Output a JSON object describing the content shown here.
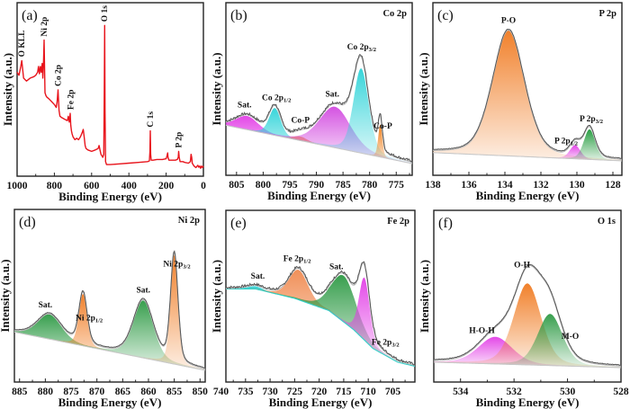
{
  "figure": {
    "xlabel": "Binding Energy (eV)",
    "ylabel": "Intensity (a.u.)"
  },
  "chart_data": [
    {
      "id": "a",
      "type": "line",
      "panel_label": "(a)",
      "title": "",
      "xlabel": "Binding Energy (eV)",
      "ylabel": "Intensity (a.u.)",
      "xlim": [
        1000,
        0
      ],
      "xticks": [
        1000,
        800,
        600,
        400,
        200,
        0
      ],
      "line_color": "#e8141c",
      "survey": {
        "x": [
          1000,
          990,
          980,
          975,
          970,
          965,
          950,
          930,
          910,
          900,
          890,
          885,
          880,
          875,
          870,
          865,
          862,
          858,
          855,
          852,
          850,
          845,
          840,
          830,
          815,
          800,
          790,
          785,
          780,
          775,
          770,
          760,
          745,
          730,
          725,
          720,
          715,
          712,
          708,
          705,
          700,
          690,
          680,
          670,
          660,
          650,
          645,
          640,
          635,
          630,
          620,
          600,
          580,
          565,
          560,
          555,
          550,
          545,
          540,
          535,
          532,
          530,
          528,
          525,
          520,
          500,
          450,
          400,
          350,
          300,
          290,
          287,
          285,
          283,
          280,
          270,
          250,
          220,
          200,
          195,
          192,
          190,
          185,
          170,
          150,
          140,
          135,
          133,
          130,
          125,
          110,
          100,
          80,
          70,
          66,
          63,
          60,
          50,
          40,
          30,
          25,
          20,
          15,
          10,
          5,
          0
        ],
        "y": [
          0.66,
          0.64,
          0.7,
          0.74,
          0.68,
          0.62,
          0.6,
          0.62,
          0.63,
          0.64,
          0.66,
          0.7,
          0.65,
          0.7,
          0.66,
          0.72,
          0.62,
          0.74,
          0.88,
          0.66,
          0.52,
          0.5,
          0.49,
          0.48,
          0.46,
          0.44,
          0.42,
          0.46,
          0.54,
          0.4,
          0.36,
          0.35,
          0.34,
          0.33,
          0.36,
          0.32,
          0.38,
          0.3,
          0.26,
          0.24,
          0.22,
          0.2,
          0.21,
          0.2,
          0.22,
          0.25,
          0.27,
          0.22,
          0.16,
          0.14,
          0.13,
          0.12,
          0.13,
          0.14,
          0.16,
          0.13,
          0.1,
          0.09,
          0.08,
          0.1,
          0.55,
          0.98,
          0.4,
          0.05,
          0.03,
          0.03,
          0.035,
          0.04,
          0.045,
          0.05,
          0.055,
          0.12,
          0.26,
          0.1,
          0.06,
          0.06,
          0.065,
          0.065,
          0.07,
          0.09,
          0.11,
          0.08,
          0.06,
          0.06,
          0.06,
          0.065,
          0.08,
          0.12,
          0.08,
          0.05,
          0.05,
          0.045,
          0.04,
          0.05,
          0.1,
          0.08,
          0.04,
          0.02,
          0.01,
          0.025,
          0.012,
          0.02,
          0.005,
          0.02,
          0.01,
          0.02
        ]
      },
      "annotations": [
        {
          "text": "O KLL",
          "x": 975
        },
        {
          "text": "Ni 2p",
          "x": 855
        },
        {
          "text": "Co 2p",
          "x": 780
        },
        {
          "text": "Fe 2p",
          "x": 712
        },
        {
          "text": "O 1s",
          "x": 531
        },
        {
          "text": "C 1s",
          "x": 285
        },
        {
          "text": "P 2p",
          "x": 133
        }
      ]
    },
    {
      "id": "b",
      "type": "area",
      "panel_label": "(b)",
      "title": "Co 2p",
      "xlabel": "Binding Energy (eV)",
      "ylabel": "Intensity (a.u.)",
      "xlim": [
        807,
        772
      ],
      "xticks": [
        805,
        800,
        795,
        790,
        785,
        780,
        775
      ],
      "background": {
        "x_start": 807,
        "y_start": 0.3,
        "x_end": 772,
        "y_end": 0.02
      },
      "measured_peak_height_noise": 0.01,
      "components": [
        {
          "name": "Sat.",
          "center": 803.0,
          "fwhm": 5.0,
          "height": 0.1,
          "color": "#e23fe6"
        },
        {
          "name": "Co 2p1/2",
          "center": 797.8,
          "fwhm": 2.6,
          "height": 0.2,
          "color": "#2ed3d8"
        },
        {
          "name": "Co-P",
          "center": 793.0,
          "fwhm": 3.0,
          "height": 0.03,
          "color": "#f07a10"
        },
        {
          "name": "Sat.",
          "center": 786.5,
          "fwhm": 7.0,
          "height": 0.3,
          "color": "#d24ae0"
        },
        {
          "name": "Co 2p3/2",
          "center": 781.6,
          "fwhm": 3.4,
          "height": 0.62,
          "color": "#2ed3d8"
        },
        {
          "name": "Co-P",
          "center": 778.0,
          "fwhm": 0.9,
          "height": 0.24,
          "color": "#f07a10"
        }
      ],
      "annotations": [
        {
          "text": "Sat.",
          "sub": "",
          "x": 803.5
        },
        {
          "text": "Co 2p",
          "sub": "1/2",
          "x": 797.5
        },
        {
          "text": "Co-P",
          "sub": "",
          "x": 793.0
        },
        {
          "text": "Sat.",
          "sub": "",
          "x": 787.0
        },
        {
          "text": "Co 2p",
          "sub": "3/2",
          "x": 781.5
        },
        {
          "text": "Co-P",
          "sub": "",
          "x": 777.5
        }
      ]
    },
    {
      "id": "c",
      "type": "area",
      "panel_label": "(c)",
      "title": "P 2p",
      "xlabel": "Binding Energy (eV)",
      "ylabel": "Intensity (a.u.)",
      "xlim": [
        138,
        127.5
      ],
      "xticks": [
        138,
        136,
        134,
        132,
        130,
        128
      ],
      "background": {
        "x_start": 138,
        "y_start": 0.1,
        "x_end": 127.5,
        "y_end": 0.04
      },
      "components": [
        {
          "name": "P-O",
          "center": 133.8,
          "fwhm": 2.1,
          "height": 0.92,
          "color": "#f07a20"
        },
        {
          "name": "P 2p1/2",
          "center": 130.1,
          "fwhm": 0.7,
          "height": 0.1,
          "color": "#e23fe6"
        },
        {
          "name": "P 2p3/2",
          "center": 129.3,
          "fwhm": 0.75,
          "height": 0.22,
          "color": "#1f9a3a"
        }
      ],
      "annotations": [
        {
          "text": "P-O",
          "sub": "",
          "x": 133.8
        },
        {
          "text": "P 2p",
          "sub": "1/2",
          "x": 130.6
        },
        {
          "text": "P 2p",
          "sub": "3/2",
          "x": 129.2
        }
      ]
    },
    {
      "id": "d",
      "type": "area",
      "panel_label": "(d)",
      "title": "Ni 2p",
      "xlabel": "Binding Energy (eV)",
      "ylabel": "Intensity (a.u.)",
      "xlim": [
        886,
        849
      ],
      "xticks": [
        885,
        880,
        875,
        870,
        865,
        860,
        855,
        850
      ],
      "background": {
        "x_start": 886,
        "y_start": 0.3,
        "x_end": 849,
        "y_end": 0.02
      },
      "components": [
        {
          "name": "Sat.",
          "center": 879.2,
          "fwhm": 5.5,
          "height": 0.18,
          "color": "#2e9a45"
        },
        {
          "name": "Ni 2p1/2",
          "center": 872.7,
          "fwhm": 1.9,
          "height": 0.38,
          "color": "#f07a20"
        },
        {
          "name": "Sat.",
          "center": 861.0,
          "fwhm": 4.6,
          "height": 0.42,
          "color": "#2e9a45"
        },
        {
          "name": "Ni 2p3/2",
          "center": 855.0,
          "fwhm": 1.7,
          "height": 0.8,
          "color": "#f07a20"
        }
      ],
      "annotations": [
        {
          "text": "Sat.",
          "sub": "",
          "x": 880
        },
        {
          "text": "Ni 2p",
          "sub": "1/2",
          "x": 871.5
        },
        {
          "text": "Sat.",
          "sub": "",
          "x": 861
        },
        {
          "text": "Ni 2p",
          "sub": "3/2",
          "x": 854.5
        }
      ]
    },
    {
      "id": "e",
      "type": "area",
      "panel_label": "(e)",
      "title": "Fe 2p",
      "xlabel": "Binding Energy (eV)",
      "ylabel": "Intensity (a.u.)",
      "xlim": [
        739,
        700.5
      ],
      "xticks": [
        740,
        735,
        730,
        725,
        720,
        715,
        710,
        705
      ],
      "background": {
        "points": [
          [
            739,
            0.62
          ],
          [
            733,
            0.62
          ],
          [
            725,
            0.55
          ],
          [
            718,
            0.46
          ],
          [
            713,
            0.32
          ],
          [
            709,
            0.18
          ],
          [
            704,
            0.08
          ],
          [
            700.5,
            0.05
          ]
        ]
      },
      "components": [
        {
          "name": "Sat.",
          "center": 733.0,
          "fwhm": 4.0,
          "height": 0.02,
          "color": "#2ed3d8"
        },
        {
          "name": "Fe 2p1/2",
          "center": 724.2,
          "fwhm": 4.6,
          "height": 0.22,
          "color": "#f08a50"
        },
        {
          "name": "Sat.",
          "center": 715.0,
          "fwhm": 6.0,
          "height": 0.34,
          "color": "#2e9a45"
        },
        {
          "name": "Fe 2p3/2",
          "center": 710.8,
          "fwhm": 2.6,
          "height": 0.46,
          "color": "#e23fe6"
        }
      ],
      "annotations": [
        {
          "text": "Sat.",
          "sub": "",
          "x": 732.5
        },
        {
          "text": "Fe 2p",
          "sub": "1/2",
          "x": 724.5
        },
        {
          "text": "Sat.",
          "sub": "",
          "x": 716.5
        },
        {
          "text": "Fe 2p",
          "sub": "3/2",
          "x": 706.5
        }
      ]
    },
    {
      "id": "f",
      "type": "area",
      "panel_label": "(f)",
      "title": "O 1s",
      "xlabel": "Binding Energy (eV)",
      "ylabel": "Intensity (a.u.)",
      "xlim": [
        535,
        528
      ],
      "xticks": [
        534,
        532,
        530,
        528
      ],
      "background": {
        "x_start": 535,
        "y_start": 0.08,
        "x_end": 528,
        "y_end": 0.04
      },
      "components": [
        {
          "name": "H-O-H",
          "center": 532.7,
          "fwhm": 1.5,
          "height": 0.2,
          "color": "#e23fe6"
        },
        {
          "name": "O-H",
          "center": 531.5,
          "fwhm": 1.2,
          "height": 0.6,
          "color": "#f07a20"
        },
        {
          "name": "M-O",
          "center": 530.65,
          "fwhm": 1.1,
          "height": 0.38,
          "color": "#2e9a45"
        }
      ],
      "annotations": [
        {
          "text": "H-O-H",
          "sub": "",
          "x": 533.2
        },
        {
          "text": "O-H",
          "sub": "",
          "x": 531.7
        },
        {
          "text": "M-O",
          "sub": "",
          "x": 529.9
        }
      ]
    }
  ]
}
